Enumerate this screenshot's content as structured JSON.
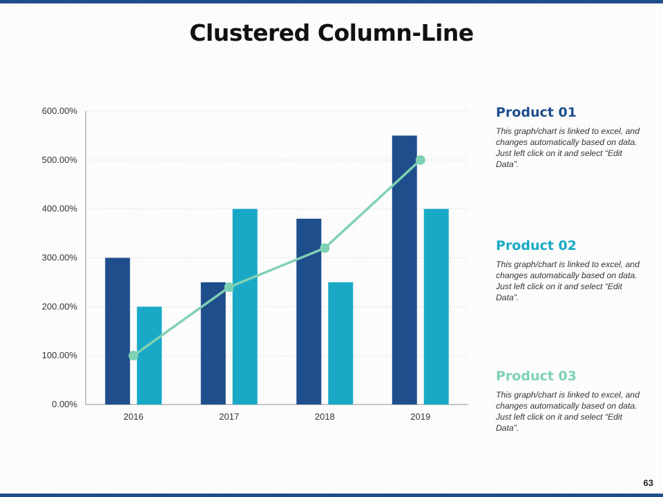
{
  "title": "Clustered Column-Line",
  "page_number": "63",
  "colors": {
    "frame": "#1f4e8c",
    "product01": "#1f4e8c",
    "product02": "#19a9c6",
    "product03": "#7fd1b4"
  },
  "panels": [
    {
      "heading": "Product 01",
      "text": "This graph/chart is linked to excel, and changes automatically based on data. Just left click on it and select “Edit Data”."
    },
    {
      "heading": "Product 02",
      "text": "This graph/chart is linked to excel, and changes automatically based on data. Just left click on it and select “Edit Data”."
    },
    {
      "heading": "Product 03",
      "text": "This graph/chart is linked to excel, and changes automatically based on data. Just left click on it and select “Edit Data”."
    }
  ],
  "chart_data": {
    "type": "bar",
    "categories": [
      "2016",
      "2017",
      "2018",
      "2019"
    ],
    "y_ticks": [
      "0.00%",
      "100.00%",
      "200.00%",
      "300.00%",
      "400.00%",
      "500.00%",
      "600.00%"
    ],
    "ylim": [
      0,
      600
    ],
    "grid": true,
    "series": [
      {
        "name": "Product 01",
        "kind": "column",
        "color": "#1f4e8c",
        "values": [
          300,
          250,
          380,
          550
        ]
      },
      {
        "name": "Product 02",
        "kind": "column",
        "color": "#19a9c6",
        "values": [
          200,
          400,
          250,
          400
        ]
      },
      {
        "name": "Product 03",
        "kind": "line",
        "color": "#7fd1b4",
        "values": [
          100,
          240,
          320,
          500
        ]
      }
    ]
  }
}
